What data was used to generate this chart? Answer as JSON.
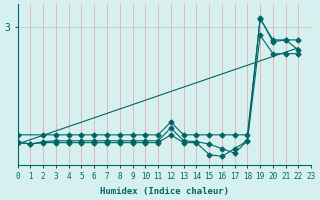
{
  "xlabel": "Humidex (Indice chaleur)",
  "bg_color": "#d6f0f0",
  "line_color": "#006666",
  "grid_v_color": "#e8a0a0",
  "xlim": [
    0,
    23
  ],
  "ylim": [
    0,
    3.5
  ],
  "trend_x": [
    0,
    22
  ],
  "trend_y": [
    0.45,
    2.55
  ],
  "max_x": [
    0,
    2,
    3,
    4,
    5,
    6,
    7,
    8,
    9,
    10,
    11,
    12,
    13,
    14,
    15,
    16,
    17,
    18,
    19,
    20,
    21,
    22
  ],
  "max_y": [
    0.65,
    0.65,
    0.65,
    0.65,
    0.65,
    0.65,
    0.65,
    0.65,
    0.65,
    0.65,
    0.65,
    0.93,
    0.65,
    0.65,
    0.65,
    0.65,
    0.65,
    0.65,
    3.18,
    2.72,
    2.72,
    2.72
  ],
  "min_x": [
    0,
    1,
    2,
    3,
    4,
    5,
    6,
    7,
    8,
    9,
    10,
    11,
    12,
    13,
    14,
    15,
    16,
    17,
    18,
    19,
    20,
    21,
    22
  ],
  "min_y": [
    0.48,
    0.45,
    0.48,
    0.48,
    0.48,
    0.48,
    0.48,
    0.48,
    0.48,
    0.48,
    0.48,
    0.48,
    0.65,
    0.48,
    0.48,
    0.22,
    0.18,
    0.35,
    0.52,
    2.82,
    2.42,
    2.42,
    2.42
  ],
  "act_x": [
    0,
    1,
    2,
    3,
    4,
    5,
    6,
    7,
    8,
    9,
    10,
    11,
    12,
    13,
    14,
    15,
    16,
    17,
    18,
    19,
    20,
    21,
    22
  ],
  "act_y": [
    0.5,
    0.45,
    0.5,
    0.52,
    0.52,
    0.52,
    0.52,
    0.52,
    0.52,
    0.52,
    0.52,
    0.52,
    0.8,
    0.52,
    0.5,
    0.45,
    0.35,
    0.25,
    0.52,
    3.2,
    2.68,
    2.72,
    2.5
  ]
}
